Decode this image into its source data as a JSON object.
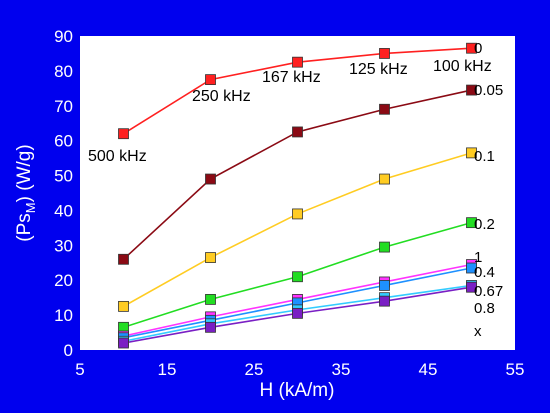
{
  "chart_data": {
    "type": "line",
    "xlabel": "H (kA/m)",
    "ylabel_main": "(Ps",
    "ylabel_sub": "M",
    "ylabel_tail": ") (W/g)",
    "xlim": [
      5,
      55
    ],
    "ylim": [
      0,
      90
    ],
    "xticks": [
      5,
      15,
      25,
      35,
      45,
      55
    ],
    "yticks": [
      0,
      10,
      20,
      30,
      40,
      50,
      60,
      70,
      80,
      90
    ],
    "grid": false,
    "x": [
      10,
      20,
      30,
      40,
      50
    ],
    "series": [
      {
        "name": "0",
        "color": "#ff2020",
        "values": [
          62,
          77.5,
          82.5,
          85,
          86.5
        ]
      },
      {
        "name": "0.05",
        "color": "#8b0a14",
        "values": [
          26,
          49,
          62.5,
          69,
          74.5
        ]
      },
      {
        "name": "0.1",
        "color": "#ffcc22",
        "values": [
          12.5,
          26.5,
          39,
          49,
          56.5
        ]
      },
      {
        "name": "0.2",
        "color": "#22dd22",
        "values": [
          6.5,
          14.5,
          21,
          29.5,
          36.5
        ]
      },
      {
        "name": "1",
        "color": "#ff33ff",
        "values": [
          4,
          9.5,
          14.5,
          19.5,
          24.5
        ]
      },
      {
        "name": "0.4",
        "color": "#1e90ff",
        "values": [
          3.5,
          8.5,
          13.5,
          18.5,
          23.5
        ]
      },
      {
        "name": "0.67",
        "color": "#33ccff",
        "values": [
          2.5,
          7.5,
          11.5,
          15,
          18.5
        ]
      },
      {
        "name": "0.8",
        "color": "#7a1fc4",
        "values": [
          2,
          6.5,
          10.5,
          14,
          18
        ]
      }
    ],
    "series_label_extra": "x",
    "annotations": [
      "500 kHz",
      "250 kHz",
      "167 kHz",
      "125 kHz",
      "100 kHz"
    ]
  }
}
